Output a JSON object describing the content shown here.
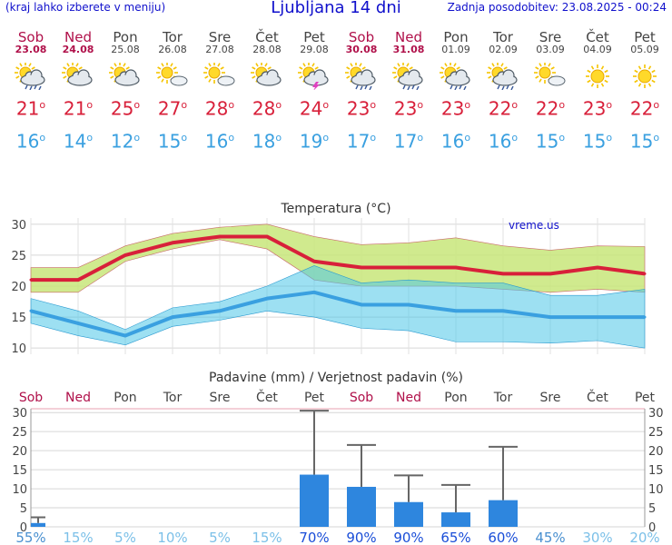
{
  "header": {
    "menu_hint": "(kraj lahko izberete v meniju)",
    "title": "Ljubljana 14 dni",
    "last_update": "Zadnja posodobitev: 23.08.2025 - 00:24"
  },
  "colors": {
    "weekend": "#b0104a",
    "weekday": "#444444",
    "tmax": "#d8203a",
    "tmin": "#3aa0e0",
    "bar": "#2e86de"
  },
  "days": [
    {
      "name": "Sob",
      "date": "23.08",
      "weekend": true,
      "icon": "sun-cloud-rain-icon",
      "tmax": "21",
      "tmin": "16"
    },
    {
      "name": "Ned",
      "date": "24.08",
      "weekend": true,
      "icon": "sun-cloud-icon",
      "tmax": "21",
      "tmin": "14"
    },
    {
      "name": "Pon",
      "date": "25.08",
      "weekend": false,
      "icon": "sun-cloud-icon",
      "tmax": "25",
      "tmin": "12"
    },
    {
      "name": "Tor",
      "date": "26.08",
      "weekend": false,
      "icon": "sun-small-cloud-icon",
      "tmax": "27",
      "tmin": "15"
    },
    {
      "name": "Sre",
      "date": "27.08",
      "weekend": false,
      "icon": "sun-small-cloud-icon",
      "tmax": "28",
      "tmin": "16"
    },
    {
      "name": "Čet",
      "date": "28.08",
      "weekend": false,
      "icon": "sun-cloud-icon",
      "tmax": "28",
      "tmin": "18"
    },
    {
      "name": "Pet",
      "date": "29.08",
      "weekend": false,
      "icon": "sun-cloud-thunder-icon",
      "tmax": "24",
      "tmin": "19"
    },
    {
      "name": "Sob",
      "date": "30.08",
      "weekend": true,
      "icon": "sun-cloud-rain-icon",
      "tmax": "23",
      "tmin": "17"
    },
    {
      "name": "Ned",
      "date": "31.08",
      "weekend": true,
      "icon": "sun-cloud-rain-icon",
      "tmax": "23",
      "tmin": "17"
    },
    {
      "name": "Pon",
      "date": "01.09",
      "weekend": false,
      "icon": "sun-cloud-rain-icon",
      "tmax": "23",
      "tmin": "16"
    },
    {
      "name": "Tor",
      "date": "02.09",
      "weekend": false,
      "icon": "sun-cloud-rain-icon",
      "tmax": "22",
      "tmin": "16"
    },
    {
      "name": "Sre",
      "date": "03.09",
      "weekend": false,
      "icon": "sun-small-cloud-icon",
      "tmax": "22",
      "tmin": "15"
    },
    {
      "name": "Čet",
      "date": "04.09",
      "weekend": false,
      "icon": "sun-icon",
      "tmax": "23",
      "tmin": "15"
    },
    {
      "name": "Pet",
      "date": "05.09",
      "weekend": false,
      "icon": "sun-icon",
      "tmax": "22",
      "tmin": "15"
    }
  ],
  "chart_data": [
    {
      "type": "line",
      "title": "Temperatura (°C)",
      "watermark": "vreme.us",
      "ylim": [
        9,
        31
      ],
      "yticks": [
        10,
        15,
        20,
        25,
        30
      ],
      "grid": true,
      "series": [
        {
          "values": [
            21,
            21,
            25,
            27,
            28,
            28,
            24,
            23,
            23,
            23,
            22,
            22,
            23,
            22
          ]
        },
        {
          "values": [
            16,
            14,
            12,
            15,
            16,
            18,
            19,
            17,
            17,
            16,
            16,
            15,
            15,
            15
          ]
        }
      ],
      "tmax_band_low": [
        19,
        19,
        24,
        26,
        27.5,
        26,
        21,
        20,
        20,
        20,
        19.5,
        19,
        19.5,
        19
      ],
      "tmax_band_high": [
        23,
        23,
        26.5,
        28.5,
        29.5,
        30,
        28,
        26.7,
        27,
        27.8,
        26.5,
        25.8,
        26.5,
        26.4
      ],
      "tmin_band_low": [
        14,
        12,
        10.5,
        13.5,
        14.5,
        16,
        15,
        13.2,
        12.8,
        11,
        11,
        10.8,
        11.2,
        10
      ],
      "tmin_band_high": [
        18,
        16,
        13,
        16.5,
        17.5,
        20,
        23.3,
        20.5,
        21,
        20.5,
        20.5,
        18.5,
        18.5,
        19.5
      ]
    },
    {
      "type": "bar",
      "title": "Padavine (mm) / Verjetnost padavin (%)",
      "categories": [
        "Sob",
        "Ned",
        "Pon",
        "Tor",
        "Sre",
        "Čet",
        "Pet",
        "Sob",
        "Ned",
        "Pon",
        "Tor",
        "Sre",
        "Čet",
        "Pet"
      ],
      "weekend": [
        true,
        true,
        false,
        false,
        false,
        false,
        false,
        true,
        true,
        false,
        false,
        false,
        false,
        false
      ],
      "ylim": [
        0,
        31
      ],
      "yticks": [
        0,
        5,
        10,
        15,
        20,
        25,
        30
      ],
      "values": [
        1,
        0,
        0,
        0,
        0,
        0,
        13.7,
        10.5,
        6.5,
        3.8,
        7,
        0,
        0,
        0
      ],
      "error_max": [
        2.5,
        0,
        0,
        0,
        0,
        0,
        30.5,
        21.5,
        13.5,
        11,
        21,
        0,
        0,
        0
      ],
      "probability": [
        "55%",
        "15%",
        "5%",
        "10%",
        "5%",
        "15%",
        "70%",
        "90%",
        "90%",
        "65%",
        "60%",
        "45%",
        "30%",
        "20%"
      ],
      "probability_values": [
        55,
        15,
        5,
        10,
        5,
        15,
        70,
        90,
        90,
        65,
        60,
        45,
        30,
        20
      ]
    }
  ]
}
